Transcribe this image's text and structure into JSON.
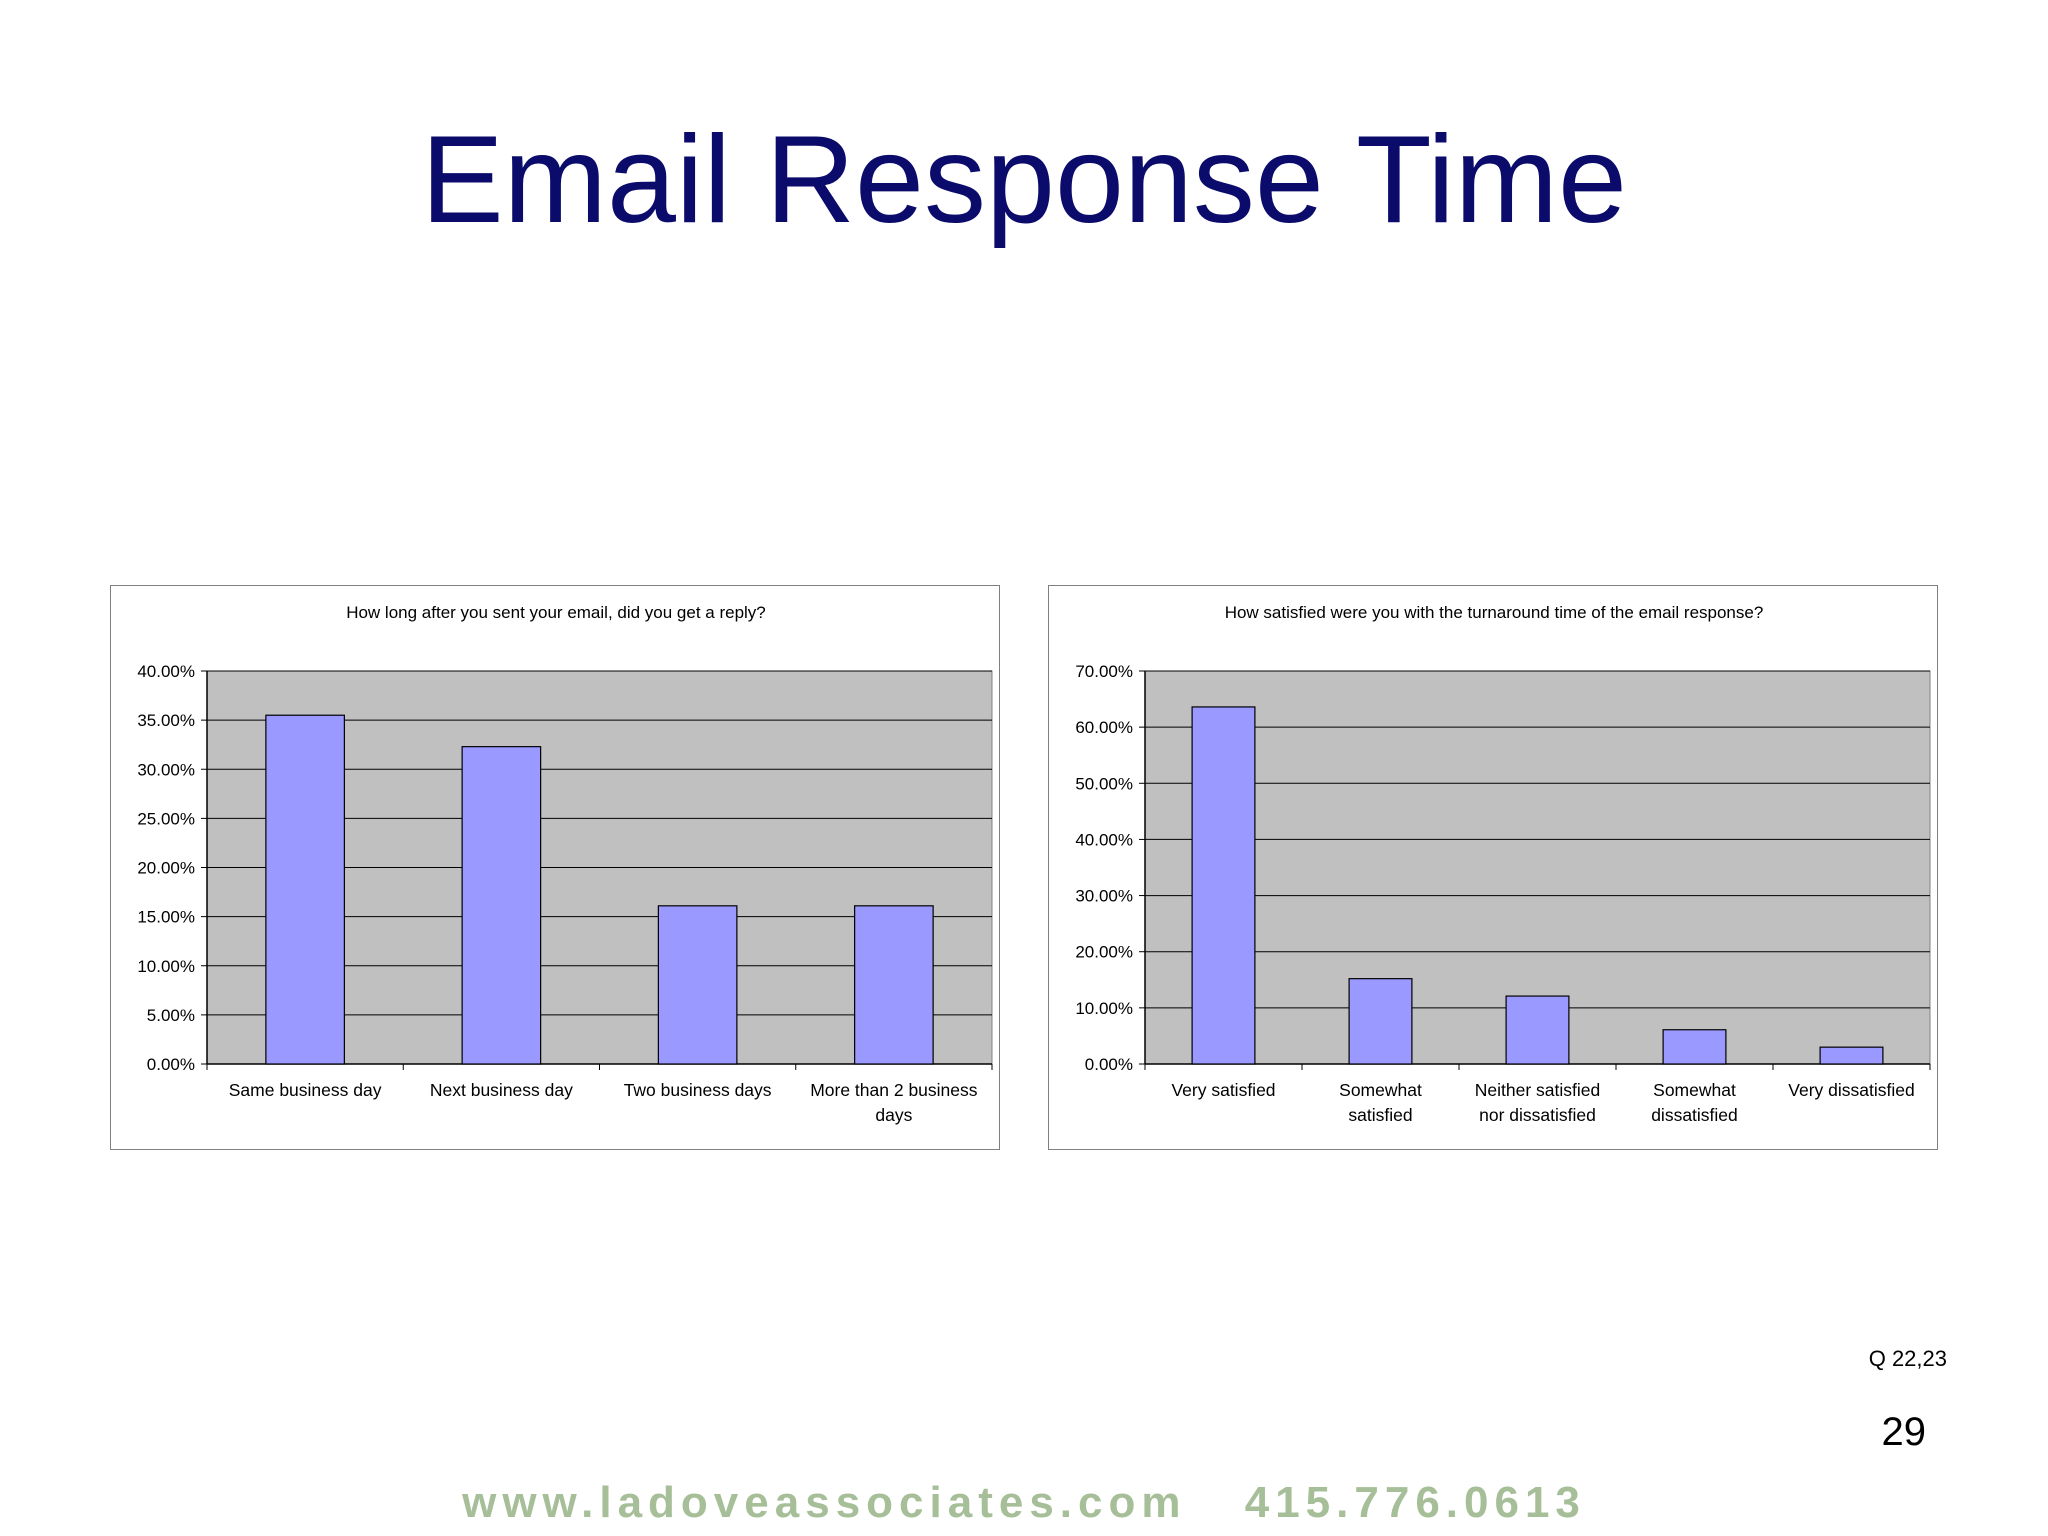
{
  "slide": {
    "title": "Email Response Time",
    "question_ref": "Q 22,23",
    "page_number": "29",
    "footer": {
      "website": "www.ladoveassociates.com",
      "phone": "415.776.0613"
    }
  },
  "colors": {
    "title": "#0b0b6b",
    "bar_fill": "#9999ff",
    "plot_background": "#c0c0c0",
    "footer": "#a6bf98"
  },
  "chart_data": [
    {
      "type": "bar",
      "title": "How long after you sent your email, did you get a reply?",
      "categories": [
        "Same business day",
        "Next business day",
        "Two business days",
        "More than 2 business days"
      ],
      "category_lines": [
        [
          "Same business day"
        ],
        [
          "Next business day"
        ],
        [
          "Two business days"
        ],
        [
          "More than 2 business",
          "days"
        ]
      ],
      "values": [
        35.5,
        32.3,
        16.1,
        16.1
      ],
      "ylim": [
        0,
        40
      ],
      "yticks": [
        0,
        5,
        10,
        15,
        20,
        25,
        30,
        35,
        40
      ],
      "ytick_labels": [
        "0.00%",
        "5.00%",
        "10.00%",
        "15.00%",
        "20.00%",
        "25.00%",
        "30.00%",
        "35.00%",
        "40.00%"
      ],
      "xlabel": "",
      "ylabel": "",
      "grid": true,
      "legend": "none"
    },
    {
      "type": "bar",
      "title": "How satisfied were you with the turnaround time of the email response?",
      "categories": [
        "Very satisfied",
        "Somewhat satisfied",
        "Neither satisfied nor dissatisfied",
        "Somewhat dissatisfied",
        "Very dissatisfied"
      ],
      "category_lines": [
        [
          "Very satisfied"
        ],
        [
          "Somewhat",
          "satisfied"
        ],
        [
          "Neither satisfied",
          "nor dissatisfied"
        ],
        [
          "Somewhat",
          "dissatisfied"
        ],
        [
          "Very dissatisfied"
        ]
      ],
      "values": [
        63.6,
        15.2,
        12.1,
        6.1,
        3.0
      ],
      "ylim": [
        0,
        70
      ],
      "yticks": [
        0,
        10,
        20,
        30,
        40,
        50,
        60,
        70
      ],
      "ytick_labels": [
        "0.00%",
        "10.00%",
        "20.00%",
        "30.00%",
        "40.00%",
        "50.00%",
        "60.00%",
        "70.00%"
      ],
      "xlabel": "",
      "ylabel": "",
      "grid": true,
      "legend": "none"
    }
  ]
}
